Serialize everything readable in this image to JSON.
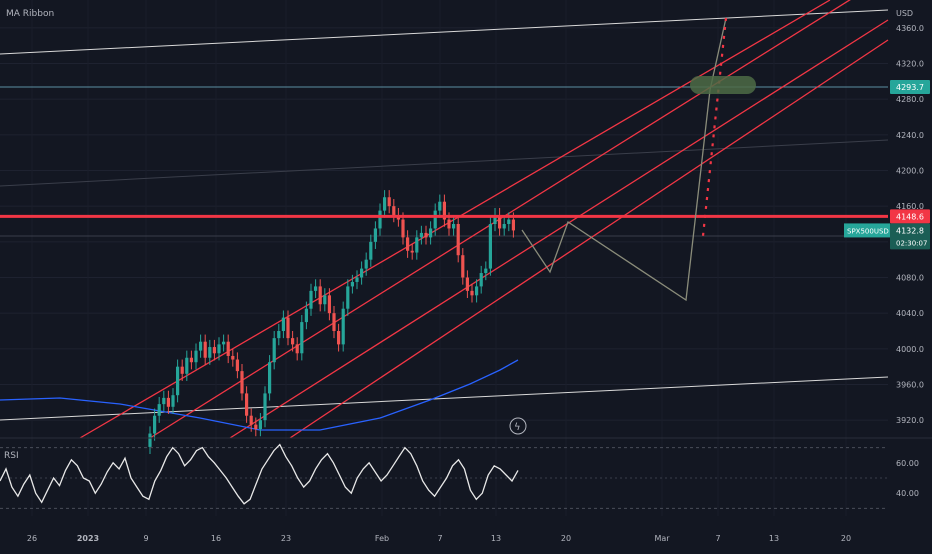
{
  "indicator_label": "MA Ribbon",
  "rsi_label": "RSI",
  "currency_label": "USD",
  "colors": {
    "background": "#131722",
    "up": "#26a69a",
    "down": "#ef5350",
    "channel": "#f23645",
    "projection": "#8a8c7a",
    "ma": "#2962ff",
    "tag_red": "#f23645",
    "tag_teal": "#26a69a",
    "tag_dark": "#1b5e55",
    "highlight": "#4e6b45"
  },
  "tags": {
    "target": "4293.7",
    "resistance": "4148.6",
    "symbol": "SPX500USD",
    "price": "4132.8",
    "countdown": "02:30:07"
  },
  "chart_data": [
    {
      "type": "candlestick",
      "title": "",
      "xlabel": "",
      "ylabel": "USD",
      "grid": true,
      "ylim": [
        3900,
        4380
      ],
      "x_ticks": [
        "26",
        "2023",
        "9",
        "16",
        "23",
        "Feb",
        "7",
        "13",
        "20",
        "Mar",
        "7",
        "13",
        "20"
      ],
      "y_ticks": [
        3920.0,
        3960.0,
        4000.0,
        4040.0,
        4080.0,
        4120.0,
        4160.0,
        4200.0,
        4240.0,
        4280.0,
        4320.0,
        4360.0
      ],
      "y_tick_labels": [
        "3920.0",
        "3960.0",
        "4000.0",
        "4040.0",
        "4080.0",
        "4120.0",
        "4160.0",
        "4200.0",
        "4240.0",
        "4280.0",
        "4320.0",
        "4360.0"
      ],
      "horizontal_levels": [
        4293.7,
        4148.6
      ],
      "series": [
        {
          "type": "candles",
          "close": [
            3905,
            3925,
            3938,
            3945,
            3935,
            3948,
            3980,
            3972,
            3990,
            3985,
            3998,
            4008,
            3990,
            4002,
            3995,
            4005,
            4008,
            3992,
            3988,
            3975,
            3950,
            3925,
            3915,
            3910,
            3920,
            3950,
            3985,
            4012,
            4020,
            4035,
            4012,
            4005,
            3995,
            4030,
            4045,
            4065,
            4070,
            4050,
            4060,
            4040,
            4020,
            4005,
            4045,
            4070,
            4075,
            4080,
            4090,
            4100,
            4120,
            4135,
            4155,
            4170,
            4160,
            4150,
            4145,
            4125,
            4110,
            4108,
            4125,
            4130,
            4125,
            4135,
            4155,
            4165,
            4145,
            4135,
            4140,
            4105,
            4080,
            4065,
            4060,
            4070,
            4085,
            4090,
            4140,
            4150,
            4135,
            4140,
            4145,
            4132.8
          ],
          "open": [
            3890,
            3905,
            3925,
            3938,
            3945,
            3935,
            3948,
            3980,
            3972,
            3990,
            3985,
            3998,
            4008,
            3990,
            4002,
            3995,
            4005,
            4008,
            3992,
            3988,
            3975,
            3950,
            3925,
            3915,
            3910,
            3920,
            3950,
            3985,
            4012,
            4020,
            4035,
            4012,
            4005,
            3995,
            4030,
            4045,
            4065,
            4070,
            4050,
            4060,
            4040,
            4020,
            4005,
            4045,
            4070,
            4075,
            4080,
            4090,
            4100,
            4120,
            4135,
            4155,
            4170,
            4160,
            4150,
            4145,
            4125,
            4110,
            4108,
            4125,
            4130,
            4125,
            4135,
            4155,
            4165,
            4145,
            4135,
            4140,
            4105,
            4080,
            4065,
            4060,
            4070,
            4085,
            4090,
            4140,
            4150,
            4135,
            4140,
            4145
          ]
        }
      ],
      "ma_series": [
        {
          "x_index": -40,
          "value": 3965
        },
        {
          "x_index": -20,
          "value": 3962
        },
        {
          "x_index": 0,
          "value": 3955
        },
        {
          "x_index": 15,
          "value": 3945
        },
        {
          "x_index": 30,
          "value": 3925
        },
        {
          "x_index": 45,
          "value": 3915
        },
        {
          "x_index": 55,
          "value": 3920
        },
        {
          "x_index": 62,
          "value": 3935
        },
        {
          "x_index": 68,
          "value": 3945
        },
        {
          "x_index": 74,
          "value": 3960
        },
        {
          "x_index": 80,
          "value": 3980
        },
        {
          "x_index": 86,
          "value": 3995
        }
      ],
      "projection_path": [
        4138,
        4090,
        4148,
        4062,
        4295,
        4368
      ]
    },
    {
      "type": "line",
      "title": "RSI",
      "ylim": [
        25,
        75
      ],
      "y_ticks": [
        40.0,
        60.0
      ],
      "y_tick_labels": [
        "40.00",
        "60.00"
      ],
      "values": [
        48,
        56,
        44,
        38,
        46,
        52,
        40,
        34,
        42,
        50,
        45,
        55,
        62,
        58,
        50,
        48,
        40,
        46,
        54,
        60,
        56,
        63,
        50,
        44,
        38,
        36,
        48,
        55,
        64,
        70,
        66,
        58,
        62,
        68,
        70,
        64,
        60,
        55,
        50,
        44,
        38,
        33,
        36,
        46,
        56,
        62,
        68,
        72,
        64,
        58,
        50,
        44,
        48,
        56,
        62,
        66,
        60,
        52,
        44,
        40,
        50,
        56,
        60,
        54,
        48,
        52,
        58,
        64,
        70,
        66,
        58,
        48,
        42,
        38,
        44,
        50,
        58,
        62,
        56,
        42,
        36,
        40,
        52,
        58,
        56,
        52,
        48,
        55
      ]
    }
  ]
}
